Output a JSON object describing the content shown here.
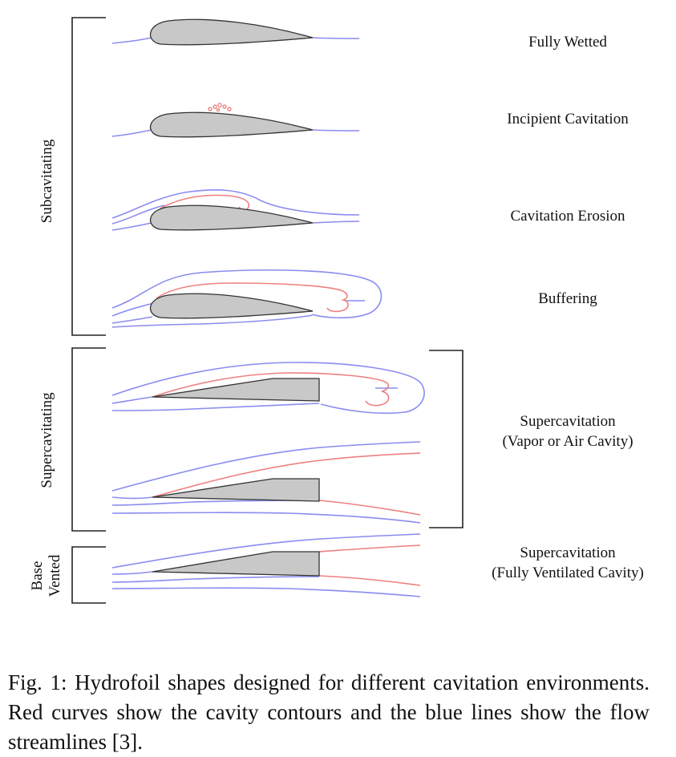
{
  "groups": {
    "subcavitating": "Subcavitating",
    "supercavitating": "Supercavitating",
    "base_vented_line1": "Base",
    "base_vented_line2": "Vented"
  },
  "regimes": {
    "fully_wetted": "Fully Wetted",
    "incipient_cavitation": "Incipient Cavitation",
    "cavitation_erosion": "Cavitation Erosion",
    "buffering": "Buffering",
    "supercavitation_vapor_line1": "Supercavitation",
    "supercavitation_vapor_line2": "(Vapor or Air Cavity)",
    "supercavitation_vent_line1": "Supercavitation",
    "supercavitation_vent_line2": "(Fully Ventilated Cavity)"
  },
  "colors": {
    "streamline": "#8a8cf0",
    "cavity": "#ee8080",
    "foil_fill": "#c8c8c8"
  },
  "caption": "Fig. 1: Hydrofoil shapes designed for different cavitation environments.  Red curves show the cavity contours and the blue lines show the flow streamlines [3]."
}
